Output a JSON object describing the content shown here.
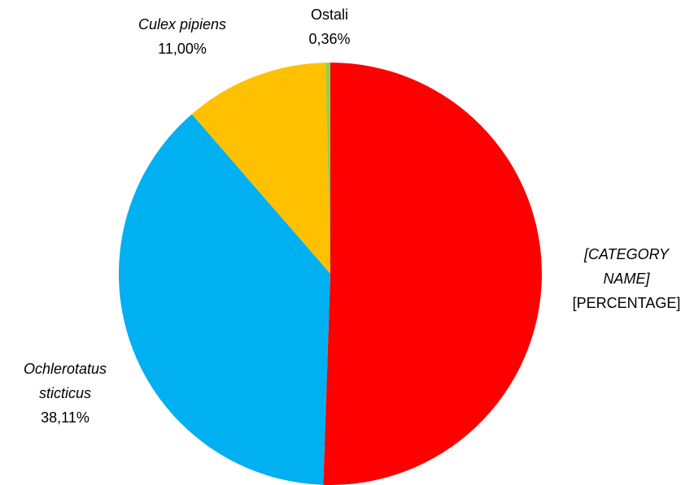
{
  "chart_data": {
    "type": "pie",
    "categories": [
      "[CATEGORY NAME]",
      "Ochlerotatus sticticus",
      "Culex pipiens",
      "Ostali"
    ],
    "values": [
      50.53,
      38.11,
      11.0,
      0.36
    ],
    "value_labels": [
      "[PERCENTAGE]",
      "38,11%",
      "11,00%",
      "0,36%"
    ],
    "colors": [
      "#ff0000",
      "#00b0f0",
      "#ffc000",
      "#92d050"
    ]
  }
}
